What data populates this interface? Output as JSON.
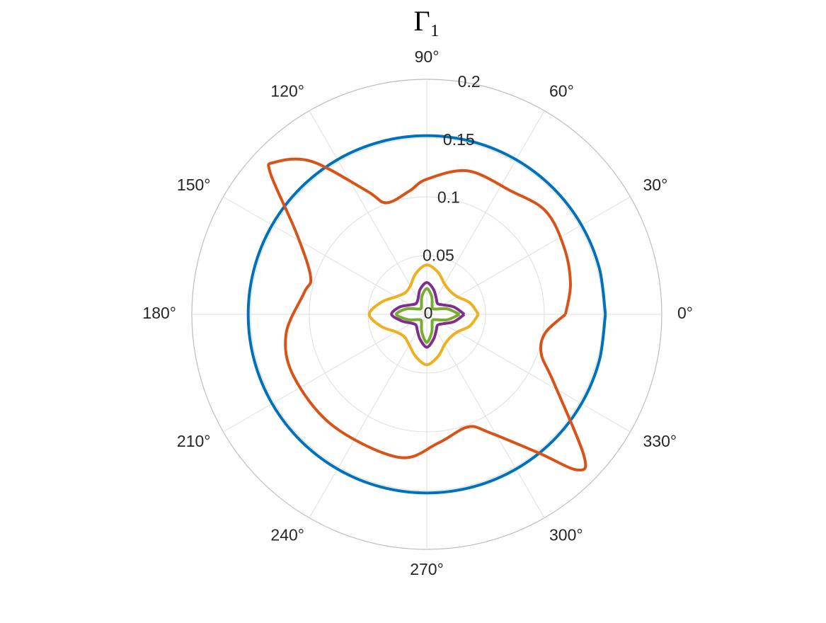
{
  "chart_data": {
    "type": "polar",
    "title": "Γ₁",
    "rlim": [
      0,
      0.2
    ],
    "rticks": [
      0,
      0.05,
      0.1,
      0.15,
      0.2
    ],
    "thetaticks": [
      {
        "value": 0,
        "label": "0°"
      },
      {
        "value": 30,
        "label": "30°"
      },
      {
        "value": 60,
        "label": "60°"
      },
      {
        "value": 90,
        "label": "90°"
      },
      {
        "value": 120,
        "label": "120°"
      },
      {
        "value": 150,
        "label": "150°"
      },
      {
        "value": 180,
        "label": "180°"
      },
      {
        "value": 210,
        "label": "210°"
      },
      {
        "value": 240,
        "label": "240°"
      },
      {
        "value": 270,
        "label": "270°"
      },
      {
        "value": 300,
        "label": "300°"
      },
      {
        "value": 330,
        "label": "330°"
      }
    ],
    "grid": true,
    "series": [
      {
        "color": "#0072BD",
        "theta": [
          0,
          15,
          30,
          45,
          60,
          75,
          90,
          105,
          120,
          135,
          150,
          165,
          180,
          195,
          210,
          225,
          240,
          255,
          270,
          285,
          300,
          315,
          330,
          345,
          360
        ],
        "values": [
          0.152,
          0.152,
          0.152,
          0.152,
          0.152,
          0.152,
          0.152,
          0.152,
          0.152,
          0.152,
          0.152,
          0.152,
          0.152,
          0.152,
          0.152,
          0.152,
          0.152,
          0.152,
          0.152,
          0.152,
          0.152,
          0.152,
          0.152,
          0.152,
          0.152
        ]
      },
      {
        "color": "#D95319",
        "theta": [
          0,
          12,
          26,
          41,
          56,
          74,
          90,
          98,
          110,
          116,
          127,
          135,
          138,
          148,
          162,
          170,
          188,
          205,
          230,
          259,
          275,
          290,
          298,
          309,
          314,
          318,
          332,
          341,
          351,
          360
        ],
        "values": [
          0.118,
          0.125,
          0.13,
          0.134,
          0.127,
          0.127,
          0.115,
          0.106,
          0.101,
          0.117,
          0.163,
          0.183,
          0.179,
          0.131,
          0.104,
          0.106,
          0.121,
          0.125,
          0.124,
          0.124,
          0.11,
          0.102,
          0.114,
          0.152,
          0.184,
          0.18,
          0.122,
          0.103,
          0.102,
          0.118
        ]
      },
      {
        "color": "#EDB120",
        "theta": [
          0,
          15,
          30,
          45,
          60,
          75,
          90,
          105,
          120,
          135,
          150,
          165,
          180,
          195,
          210,
          225,
          240,
          255,
          270,
          285,
          300,
          315,
          330,
          345,
          360
        ],
        "values": [
          0.044,
          0.038,
          0.03,
          0.028,
          0.03,
          0.037,
          0.042,
          0.036,
          0.028,
          0.026,
          0.03,
          0.04,
          0.049,
          0.04,
          0.03,
          0.027,
          0.03,
          0.037,
          0.043,
          0.037,
          0.03,
          0.028,
          0.03,
          0.038,
          0.044
        ]
      },
      {
        "color": "#7E2F8E",
        "theta": [
          0,
          15,
          30,
          45,
          60,
          75,
          90,
          105,
          120,
          135,
          150,
          165,
          180,
          195,
          210,
          225,
          240,
          255,
          270,
          285,
          300,
          315,
          330,
          345,
          360
        ],
        "values": [
          0.032,
          0.024,
          0.016,
          0.013,
          0.016,
          0.022,
          0.027,
          0.022,
          0.015,
          0.013,
          0.016,
          0.024,
          0.03,
          0.022,
          0.015,
          0.013,
          0.016,
          0.022,
          0.028,
          0.022,
          0.016,
          0.013,
          0.016,
          0.024,
          0.032
        ]
      },
      {
        "color": "#77AC30",
        "theta": [
          0,
          15,
          30,
          45,
          60,
          75,
          90,
          105,
          120,
          135,
          150,
          165,
          180,
          195,
          210,
          225,
          240,
          255,
          270,
          285,
          300,
          315,
          330,
          345,
          360
        ],
        "values": [
          0.028,
          0.018,
          0.009,
          0.007,
          0.009,
          0.016,
          0.022,
          0.016,
          0.009,
          0.007,
          0.009,
          0.018,
          0.026,
          0.017,
          0.009,
          0.007,
          0.009,
          0.016,
          0.024,
          0.016,
          0.009,
          0.007,
          0.009,
          0.018,
          0.028
        ]
      }
    ]
  }
}
